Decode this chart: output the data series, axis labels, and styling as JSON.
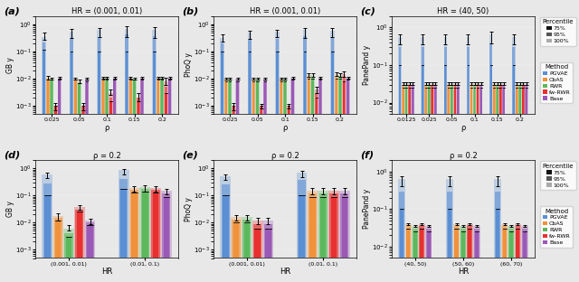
{
  "panels": [
    {
      "label": "(a)",
      "title": "HR = (0.001, 0.01)",
      "ylabel": "GB y",
      "xlabel": "ρ",
      "xticklabels": [
        "0.025",
        "0.05",
        "0.1",
        "0.15",
        "0.2"
      ],
      "ylim": [
        0.0005,
        2.0
      ],
      "data": {
        "PGVAE": {
          "p75": [
            0.12,
            0.1,
            0.1,
            0.1,
            0.1
          ],
          "p95": [
            0.22,
            0.3,
            0.35,
            0.42,
            0.38
          ],
          "p100": [
            0.35,
            0.55,
            0.62,
            0.7,
            0.62
          ],
          "err_lo": [
            0.08,
            0.24,
            0.28,
            0.35,
            0.3
          ],
          "err_hi": [
            0.15,
            0.12,
            0.1,
            0.12,
            0.14
          ]
        },
        "CbAS": {
          "p75": [
            0.009,
            0.009,
            0.009,
            0.009,
            0.009
          ],
          "p95": [
            0.01,
            0.009,
            0.01,
            0.01,
            0.01
          ],
          "p100": [
            0.011,
            0.01,
            0.011,
            0.011,
            0.011
          ],
          "err_lo": [
            0.002,
            0.001,
            0.001,
            0.001,
            0.001
          ],
          "err_hi": [
            0.002,
            0.001,
            0.001,
            0.001,
            0.001
          ]
        },
        "RWR": {
          "p75": [
            0.009,
            0.007,
            0.009,
            0.009,
            0.009
          ],
          "p95": [
            0.009,
            0.007,
            0.01,
            0.009,
            0.01
          ],
          "p100": [
            0.01,
            0.008,
            0.011,
            0.01,
            0.011
          ],
          "err_lo": [
            0.001,
            0.001,
            0.001,
            0.001,
            0.001
          ],
          "err_hi": [
            0.001,
            0.001,
            0.001,
            0.001,
            0.001
          ]
        },
        "fw-RWR": {
          "p75": [
            0.001,
            0.001,
            0.0015,
            0.0015,
            0.003
          ],
          "p95": [
            0.001,
            0.001,
            0.002,
            0.002,
            0.005
          ],
          "p100": [
            0.001,
            0.001,
            0.003,
            0.002,
            0.008
          ],
          "err_lo": [
            0.0003,
            0.0003,
            0.0005,
            0.0005,
            0.002
          ],
          "err_hi": [
            0.0003,
            0.0003,
            0.001,
            0.001,
            0.003
          ]
        },
        "Base": {
          "p75": [
            0.009,
            0.008,
            0.009,
            0.009,
            0.009
          ],
          "p95": [
            0.01,
            0.009,
            0.01,
            0.01,
            0.01
          ],
          "p100": [
            0.011,
            0.01,
            0.011,
            0.011,
            0.011
          ],
          "err_lo": [
            0.001,
            0.001,
            0.001,
            0.001,
            0.001
          ],
          "err_hi": [
            0.001,
            0.001,
            0.001,
            0.001,
            0.001
          ]
        }
      }
    },
    {
      "label": "(b)",
      "title": "HR = (0.001, 0.01)",
      "ylabel": "PhoQ y",
      "xlabel": "ρ",
      "xticklabels": [
        "0.025",
        "0.05",
        "0.1",
        "0.15",
        "0.2"
      ],
      "ylim": [
        0.0005,
        2.0
      ],
      "data": {
        "PGVAE": {
          "p75": [
            0.1,
            0.1,
            0.1,
            0.1,
            0.1
          ],
          "p95": [
            0.2,
            0.28,
            0.3,
            0.38,
            0.32
          ],
          "p100": [
            0.32,
            0.5,
            0.55,
            0.62,
            0.58
          ],
          "err_lo": [
            0.08,
            0.2,
            0.22,
            0.3,
            0.25
          ],
          "err_hi": [
            0.12,
            0.1,
            0.1,
            0.12,
            0.14
          ]
        },
        "CbAS": {
          "p75": [
            0.008,
            0.008,
            0.008,
            0.01,
            0.01
          ],
          "p95": [
            0.009,
            0.009,
            0.009,
            0.012,
            0.012
          ],
          "p100": [
            0.01,
            0.01,
            0.01,
            0.014,
            0.015
          ],
          "err_lo": [
            0.001,
            0.001,
            0.001,
            0.002,
            0.002
          ],
          "err_hi": [
            0.001,
            0.001,
            0.001,
            0.002,
            0.002
          ]
        },
        "RWR": {
          "p75": [
            0.008,
            0.008,
            0.008,
            0.01,
            0.01
          ],
          "p95": [
            0.009,
            0.009,
            0.009,
            0.012,
            0.012
          ],
          "p100": [
            0.01,
            0.01,
            0.01,
            0.014,
            0.014
          ],
          "err_lo": [
            0.001,
            0.001,
            0.001,
            0.002,
            0.002
          ],
          "err_hi": [
            0.001,
            0.001,
            0.001,
            0.002,
            0.002
          ]
        },
        "fw-RWR": {
          "p75": [
            0.001,
            0.001,
            0.001,
            0.002,
            0.008
          ],
          "p95": [
            0.001,
            0.001,
            0.001,
            0.003,
            0.011
          ],
          "p100": [
            0.001,
            0.001,
            0.001,
            0.004,
            0.015
          ],
          "err_lo": [
            0.0003,
            0.0002,
            0.0002,
            0.001,
            0.003
          ],
          "err_hi": [
            0.0003,
            0.0002,
            0.0002,
            0.001,
            0.003
          ]
        },
        "Base": {
          "p75": [
            0.008,
            0.008,
            0.009,
            0.009,
            0.009
          ],
          "p95": [
            0.009,
            0.009,
            0.01,
            0.01,
            0.01
          ],
          "p100": [
            0.01,
            0.01,
            0.011,
            0.011,
            0.011
          ],
          "err_lo": [
            0.001,
            0.001,
            0.001,
            0.001,
            0.001
          ],
          "err_hi": [
            0.001,
            0.001,
            0.001,
            0.001,
            0.001
          ]
        }
      }
    },
    {
      "label": "(c)",
      "title": "HR = (40, 50)",
      "ylabel": "PanePand y",
      "xlabel": "ρ",
      "xticklabels": [
        "0.0125",
        "0.025",
        "0.05",
        "0.1",
        "0.15",
        "0.2"
      ],
      "ylim": [
        0.005,
        2.0
      ],
      "data": {
        "PGVAE": {
          "p75": [
            0.1,
            0.1,
            0.1,
            0.1,
            0.1,
            0.1
          ],
          "p95": [
            0.3,
            0.3,
            0.3,
            0.3,
            0.38,
            0.3
          ],
          "p100": [
            0.55,
            0.55,
            0.55,
            0.55,
            0.65,
            0.55
          ],
          "err_lo": [
            0.2,
            0.2,
            0.2,
            0.2,
            0.28,
            0.2
          ],
          "err_hi": [
            0.12,
            0.12,
            0.12,
            0.12,
            0.14,
            0.12
          ]
        },
        "CbAS": {
          "p75": [
            0.025,
            0.025,
            0.025,
            0.025,
            0.025,
            0.025
          ],
          "p95": [
            0.028,
            0.028,
            0.028,
            0.028,
            0.028,
            0.028
          ],
          "p100": [
            0.032,
            0.032,
            0.032,
            0.032,
            0.032,
            0.032
          ],
          "err_lo": [
            0.002,
            0.002,
            0.002,
            0.002,
            0.002,
            0.002
          ],
          "err_hi": [
            0.002,
            0.002,
            0.002,
            0.002,
            0.002,
            0.002
          ]
        },
        "RWR": {
          "p75": [
            0.025,
            0.025,
            0.025,
            0.025,
            0.025,
            0.025
          ],
          "p95": [
            0.028,
            0.028,
            0.028,
            0.028,
            0.028,
            0.028
          ],
          "p100": [
            0.032,
            0.032,
            0.032,
            0.032,
            0.032,
            0.032
          ],
          "err_lo": [
            0.002,
            0.002,
            0.002,
            0.002,
            0.002,
            0.002
          ],
          "err_hi": [
            0.002,
            0.002,
            0.002,
            0.002,
            0.002,
            0.002
          ]
        },
        "fw-RWR": {
          "p75": [
            0.025,
            0.025,
            0.025,
            0.025,
            0.025,
            0.025
          ],
          "p95": [
            0.028,
            0.028,
            0.028,
            0.028,
            0.028,
            0.028
          ],
          "p100": [
            0.032,
            0.032,
            0.032,
            0.032,
            0.032,
            0.032
          ],
          "err_lo": [
            0.002,
            0.002,
            0.002,
            0.002,
            0.002,
            0.002
          ],
          "err_hi": [
            0.002,
            0.002,
            0.002,
            0.002,
            0.002,
            0.002
          ]
        },
        "Base": {
          "p75": [
            0.025,
            0.025,
            0.025,
            0.025,
            0.025,
            0.025
          ],
          "p95": [
            0.028,
            0.028,
            0.028,
            0.028,
            0.028,
            0.028
          ],
          "p100": [
            0.032,
            0.032,
            0.032,
            0.032,
            0.032,
            0.032
          ],
          "err_lo": [
            0.002,
            0.002,
            0.002,
            0.002,
            0.002,
            0.002
          ],
          "err_hi": [
            0.002,
            0.002,
            0.002,
            0.002,
            0.002,
            0.002
          ]
        }
      }
    },
    {
      "label": "(d)",
      "title": "ρ = 0.2",
      "ylabel": "GB y",
      "xlabel": "HR",
      "xticklabels": [
        "(0.001, 0.01)",
        "(0.01, 0.1)"
      ],
      "ylim": [
        0.0005,
        2.0
      ],
      "data": {
        "PGVAE": {
          "p75": [
            0.1,
            0.18
          ],
          "p95": [
            0.28,
            0.42
          ],
          "p100": [
            0.62,
            0.85
          ],
          "err_lo": [
            0.18,
            0.24
          ],
          "err_hi": [
            0.08,
            0.08
          ]
        },
        "CbAS": {
          "p75": [
            0.012,
            0.13
          ],
          "p95": [
            0.015,
            0.16
          ],
          "p100": [
            0.018,
            0.19
          ],
          "err_lo": [
            0.006,
            0.05
          ],
          "err_hi": [
            0.004,
            0.04
          ]
        },
        "RWR": {
          "p75": [
            0.003,
            0.14
          ],
          "p95": [
            0.004,
            0.17
          ],
          "p100": [
            0.006,
            0.2
          ],
          "err_lo": [
            0.001,
            0.06
          ],
          "err_hi": [
            0.002,
            0.04
          ]
        },
        "fw-RWR": {
          "p75": [
            0.025,
            0.13
          ],
          "p95": [
            0.03,
            0.16
          ],
          "p100": [
            0.038,
            0.19
          ],
          "err_lo": [
            0.008,
            0.05
          ],
          "err_hi": [
            0.006,
            0.04
          ]
        },
        "Base": {
          "p75": [
            0.008,
            0.09
          ],
          "p95": [
            0.01,
            0.12
          ],
          "p100": [
            0.012,
            0.15
          ],
          "err_lo": [
            0.003,
            0.04
          ],
          "err_hi": [
            0.002,
            0.03
          ]
        }
      }
    },
    {
      "label": "(e)",
      "title": "ρ = 0.2",
      "ylabel": "PhoQ y",
      "xlabel": "HR",
      "xticklabels": [
        "(0.001, 0.01)",
        "(0.01, 0.1)"
      ],
      "ylim": [
        0.0005,
        2.0
      ],
      "data": {
        "PGVAE": {
          "p75": [
            0.1,
            0.1
          ],
          "p95": [
            0.25,
            0.38
          ],
          "p100": [
            0.52,
            0.7
          ],
          "err_lo": [
            0.15,
            0.22
          ],
          "err_hi": [
            0.08,
            0.1
          ]
        },
        "CbAS": {
          "p75": [
            0.01,
            0.09
          ],
          "p95": [
            0.013,
            0.12
          ],
          "p100": [
            0.016,
            0.15
          ],
          "err_lo": [
            0.004,
            0.04
          ],
          "err_hi": [
            0.003,
            0.04
          ]
        },
        "RWR": {
          "p75": [
            0.01,
            0.09
          ],
          "p95": [
            0.013,
            0.12
          ],
          "p100": [
            0.016,
            0.15
          ],
          "err_lo": [
            0.004,
            0.04
          ],
          "err_hi": [
            0.003,
            0.04
          ]
        },
        "fw-RWR": {
          "p75": [
            0.006,
            0.09
          ],
          "p95": [
            0.009,
            0.12
          ],
          "p100": [
            0.012,
            0.15
          ],
          "err_lo": [
            0.003,
            0.04
          ],
          "err_hi": [
            0.003,
            0.04
          ]
        },
        "Base": {
          "p75": [
            0.006,
            0.09
          ],
          "p95": [
            0.009,
            0.12
          ],
          "p100": [
            0.012,
            0.15
          ],
          "err_lo": [
            0.003,
            0.04
          ],
          "err_hi": [
            0.003,
            0.04
          ]
        }
      }
    },
    {
      "label": "(f)",
      "title": "ρ = 0.2",
      "ylabel": "PanePand y",
      "xlabel": "HR",
      "xticklabels": [
        "(40, 50)",
        "(50, 60)",
        "(60, 70)"
      ],
      "ylim": [
        0.005,
        2.0
      ],
      "data": {
        "PGVAE": {
          "p75": [
            0.1,
            0.1,
            0.1
          ],
          "p95": [
            0.3,
            0.3,
            0.3
          ],
          "p100": [
            0.62,
            0.62,
            0.62
          ],
          "err_lo": [
            0.2,
            0.2,
            0.2
          ],
          "err_hi": [
            0.12,
            0.12,
            0.12
          ]
        },
        "CbAS": {
          "p75": [
            0.03,
            0.03,
            0.03
          ],
          "p95": [
            0.035,
            0.035,
            0.035
          ],
          "p100": [
            0.04,
            0.04,
            0.04
          ],
          "err_lo": [
            0.003,
            0.003,
            0.003
          ],
          "err_hi": [
            0.003,
            0.003,
            0.003
          ]
        },
        "RWR": {
          "p75": [
            0.026,
            0.026,
            0.026
          ],
          "p95": [
            0.03,
            0.03,
            0.03
          ],
          "p100": [
            0.035,
            0.035,
            0.035
          ],
          "err_lo": [
            0.002,
            0.002,
            0.002
          ],
          "err_hi": [
            0.002,
            0.002,
            0.002
          ]
        },
        "fw-RWR": {
          "p75": [
            0.03,
            0.03,
            0.03
          ],
          "p95": [
            0.035,
            0.035,
            0.035
          ],
          "p100": [
            0.04,
            0.04,
            0.04
          ],
          "err_lo": [
            0.003,
            0.003,
            0.003
          ],
          "err_hi": [
            0.003,
            0.003,
            0.003
          ]
        },
        "Base": {
          "p75": [
            0.026,
            0.026,
            0.026
          ],
          "p95": [
            0.03,
            0.03,
            0.03
          ],
          "p100": [
            0.035,
            0.035,
            0.035
          ],
          "err_lo": [
            0.002,
            0.002,
            0.002
          ],
          "err_hi": [
            0.002,
            0.002,
            0.002
          ]
        }
      }
    }
  ],
  "methods": [
    "PGVAE",
    "CbAS",
    "RWR",
    "fw-RWR",
    "Base"
  ],
  "method_colors": {
    "PGVAE": "#5b8fd4",
    "CbAS": "#f0923b",
    "RWR": "#5cb85c",
    "fw-RWR": "#e83030",
    "Base": "#9b59b6"
  },
  "bar_width": 0.14,
  "legend_panels": [
    2,
    5
  ],
  "bg_color": "#e8e8e8"
}
